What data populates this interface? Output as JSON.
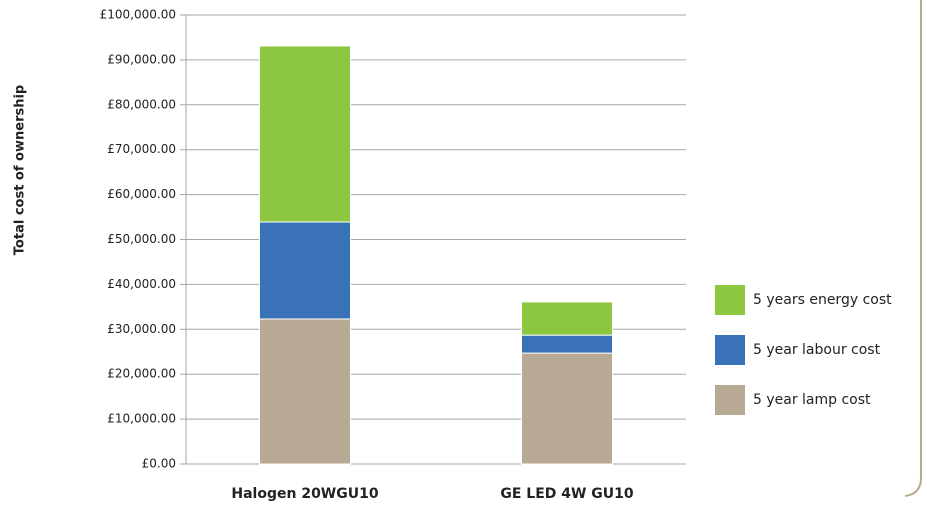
{
  "chart_data": {
    "type": "stacked_bar",
    "y_label": "Total cost of ownership",
    "categories": [
      "Halogen 20WGU10",
      "GE LED 4W GU10"
    ],
    "series": [
      {
        "name": "5 year lamp cost",
        "color": "#b8a994",
        "values": [
          32300,
          24700
        ]
      },
      {
        "name": "5 year labour cost",
        "color": "#3a72b8",
        "values": [
          21600,
          4000
        ]
      },
      {
        "name": "5 years energy cost",
        "color": "#8dc63f",
        "values": [
          39200,
          7400
        ]
      }
    ],
    "ylim": [
      0,
      100000
    ],
    "yticks": [
      {
        "value": 0,
        "label": "£0.00"
      },
      {
        "value": 10000,
        "label": "£10,000.00"
      },
      {
        "value": 20000,
        "label": "£20,000.00"
      },
      {
        "value": 30000,
        "label": "£30,000.00"
      },
      {
        "value": 40000,
        "label": "£40,000.00"
      },
      {
        "value": 50000,
        "label": "£50,000.00"
      },
      {
        "value": 60000,
        "label": "£60,000.00"
      },
      {
        "value": 70000,
        "label": "£70,000.00"
      },
      {
        "value": 80000,
        "label": "£80,000.00"
      },
      {
        "value": 90000,
        "label": "£90,000.00"
      },
      {
        "value": 100000,
        "label": "£100,000.00"
      }
    ],
    "grid": true,
    "legend": "right"
  }
}
